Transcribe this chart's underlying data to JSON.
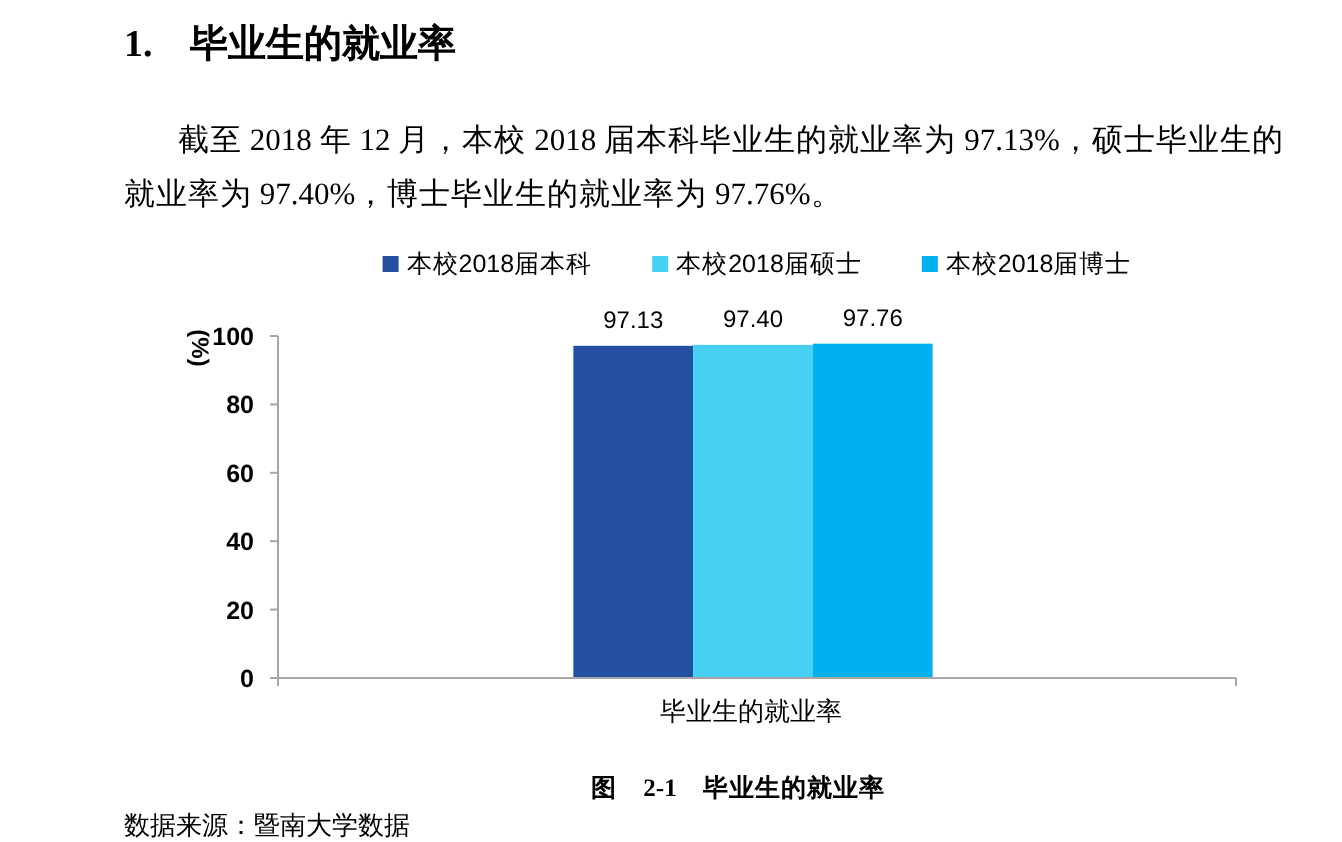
{
  "chart_data": {
    "type": "bar",
    "title": "1. 毕业生的就业率",
    "subtitle": "截至 2018 年 12 月，本校 2018 届本科毕业生的就业率为 97.13%，硕士毕业生的就业率为 97.40%，博士毕业生的就业率为 97.76%。",
    "categories": [
      "毕业生的就业率"
    ],
    "series": [
      {
        "name": "本校2018届本科",
        "color": "#2350a0",
        "values": [
          97.13
        ],
        "value_labels": [
          "97.13"
        ]
      },
      {
        "name": "本校2018届硕士",
        "color": "#46d0f4",
        "values": [
          97.4
        ],
        "value_labels": [
          "97.40"
        ]
      },
      {
        "name": "本校2018届博士",
        "color": "#00b0f0",
        "values": [
          97.76
        ],
        "value_labels": [
          "97.76"
        ]
      }
    ],
    "ylabel": "(%)",
    "ylim": [
      0,
      100
    ],
    "yticks": [
      0,
      20,
      40,
      60,
      80,
      100
    ],
    "legend": "top",
    "annotations": [
      "图 2-1 毕业生的就业率",
      "数据来源：暨南大学数据"
    ]
  }
}
